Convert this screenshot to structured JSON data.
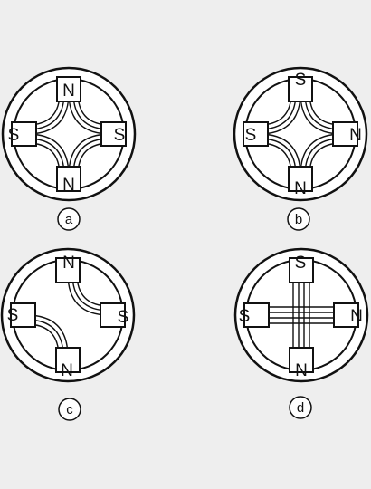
{
  "colors": {
    "background": "#eeeeee",
    "line": "#111111",
    "fill": "#ffffff"
  },
  "diagrams": [
    {
      "caption": "a",
      "poles": {
        "top": "N",
        "bottom": "N",
        "left": "S",
        "right": "S"
      },
      "field": "four-curved"
    },
    {
      "caption": "b",
      "poles": {
        "top": "S",
        "bottom": "N",
        "left": "S",
        "right": "N"
      },
      "field": "four-curved"
    },
    {
      "caption": "c",
      "poles": {
        "top": "N",
        "bottom": "N",
        "left": "S",
        "right": "S"
      },
      "field": "two-curved"
    },
    {
      "caption": "d",
      "poles": {
        "top": "S",
        "bottom": "N",
        "left": "S",
        "right": "N"
      },
      "field": "crossing-straight"
    }
  ]
}
